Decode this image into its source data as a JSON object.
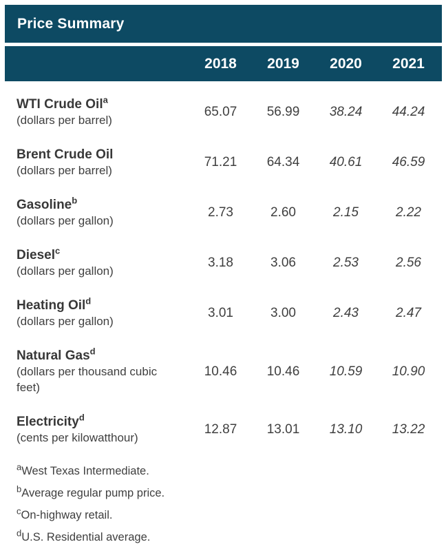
{
  "colors": {
    "header_bg": "#0D4A63",
    "header_text": "#FFFFFF",
    "body_text": "#3F3F3F"
  },
  "chart_data": {
    "type": "table",
    "title": "Price Summary",
    "columns": [
      "2018",
      "2019",
      "2020",
      "2021"
    ],
    "italic_columns": [
      "2020",
      "2021"
    ],
    "rows": [
      {
        "name": "WTI Crude Oil",
        "sup": "a",
        "unit": "(dollars per barrel)",
        "values": [
          "65.07",
          "56.99",
          "38.24",
          "44.24"
        ]
      },
      {
        "name": "Brent Crude Oil",
        "sup": "",
        "unit": "(dollars per barrel)",
        "values": [
          "71.21",
          "64.34",
          "40.61",
          "46.59"
        ]
      },
      {
        "name": "Gasoline",
        "sup": "b",
        "unit": "(dollars per gallon)",
        "values": [
          "2.73",
          "2.60",
          "2.15",
          "2.22"
        ]
      },
      {
        "name": "Diesel",
        "sup": "c",
        "unit": "(dollars per gallon)",
        "values": [
          "3.18",
          "3.06",
          "2.53",
          "2.56"
        ]
      },
      {
        "name": "Heating Oil",
        "sup": "d",
        "unit": "(dollars per gallon)",
        "values": [
          "3.01",
          "3.00",
          "2.43",
          "2.47"
        ]
      },
      {
        "name": "Natural Gas",
        "sup": "d",
        "unit": "(dollars per thousand cubic feet)",
        "values": [
          "10.46",
          "10.46",
          "10.59",
          "10.90"
        ]
      },
      {
        "name": "Electricity",
        "sup": "d",
        "unit": "(cents per kilowatthour)",
        "values": [
          "12.87",
          "13.01",
          "13.10",
          "13.22"
        ]
      }
    ],
    "footnotes": [
      {
        "marker": "a",
        "text": "West Texas Intermediate."
      },
      {
        "marker": "b",
        "text": "Average regular pump price."
      },
      {
        "marker": "c",
        "text": "On-highway retail."
      },
      {
        "marker": "d",
        "text": "U.S. Residential average."
      }
    ]
  }
}
